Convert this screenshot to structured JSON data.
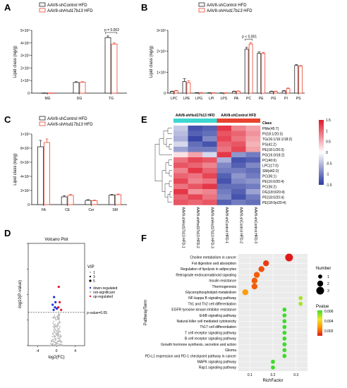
{
  "colors": {
    "control": "#222222",
    "knockdown": "#e8432e",
    "teal": "#3dd6d0",
    "heat_low": "#2b3aa0",
    "heat_mid": "#ffffff",
    "heat_high": "#e0182b",
    "volcano_down": "#1f2fd6",
    "volcano_up": "#e0182b",
    "volcano_ns": "#b5b5b5"
  },
  "legend": {
    "control": "AAV8-shControl HFD",
    "knockdown_prefix": "AAV8-sh",
    "knockdown_gene": "Hsd17b13",
    "knockdown_suffix": " HFD"
  },
  "chart_data": [
    {
      "panel": "A",
      "type": "bar",
      "ylabel": "Lipid class (ng/g)",
      "categories": [
        "MG",
        "DG",
        "TG"
      ],
      "yticks": [
        "0",
        "1×10³",
        "2×10³",
        "3×10³",
        "4×10³",
        "5×10³"
      ],
      "ylim": [
        0,
        5000
      ],
      "series": [
        {
          "name": "AAV8-shControl HFD",
          "values": [
            10,
            850,
            4420
          ],
          "errors": [
            5,
            60,
            130
          ]
        },
        {
          "name": "AAV8-shHsd17b13 HFD",
          "values": [
            10,
            860,
            3900
          ],
          "errors": [
            5,
            50,
            100
          ]
        }
      ],
      "annotation": {
        "text": "p = 0.002",
        "category": "TG"
      }
    },
    {
      "panel": "B",
      "type": "bar",
      "ylabel": "Lipid class (ng/g)",
      "categories": [
        "LPC",
        "LPE",
        "LPG",
        "LPI",
        "LPS",
        "PA",
        "PC",
        "PE",
        "PG",
        "PI",
        "PS"
      ],
      "yticks": [
        "0",
        "1×10³",
        "2×10³",
        "3×10³"
      ],
      "ylim": [
        0,
        3000
      ],
      "series": [
        {
          "name": "AAV8-shControl HFD",
          "values": [
            80,
            560,
            20,
            15,
            10,
            80,
            2100,
            1900,
            80,
            100,
            1320
          ],
          "errors": [
            15,
            130,
            5,
            5,
            5,
            15,
            90,
            70,
            15,
            25,
            40
          ]
        },
        {
          "name": "AAV8-shHsd17b13 HFD",
          "values": [
            110,
            500,
            20,
            15,
            10,
            90,
            2350,
            1900,
            80,
            210,
            1290
          ],
          "errors": [
            20,
            90,
            5,
            5,
            5,
            15,
            60,
            50,
            15,
            35,
            30
          ]
        }
      ],
      "annotation": {
        "text": "p < 0.001",
        "category": "PC"
      }
    },
    {
      "panel": "C",
      "type": "bar",
      "ylabel": "Lipid class (ng/g)",
      "categories": [
        "FA",
        "CE",
        "Cer",
        "SM"
      ],
      "yticks": [
        "0",
        "2×10²",
        "4×10²",
        "6×10²",
        "8×10²",
        "1×10³"
      ],
      "ylim": [
        0,
        1000
      ],
      "series": [
        {
          "name": "AAV8-shControl HFD",
          "values": [
            820,
            110,
            60,
            135
          ],
          "errors": [
            90,
            15,
            10,
            10
          ]
        },
        {
          "name": "AAV8-shHsd17b13 HFD",
          "values": [
            880,
            130,
            55,
            140
          ],
          "errors": [
            50,
            15,
            8,
            10
          ]
        }
      ]
    },
    {
      "panel": "D",
      "type": "scatter",
      "title": "Volcano Plot",
      "xlabel": "log2(FC)",
      "ylabel": "-log10(P-value)",
      "xticks": [
        "-4",
        "0",
        "4"
      ],
      "xlim": [
        -6,
        6
      ],
      "yticks": [
        "0",
        "1",
        "2",
        "3",
        "4"
      ],
      "ylim": [
        0,
        4
      ],
      "threshold_label": "p-value=0.05",
      "threshold": 1.3,
      "vip_title": "VIP",
      "vip_levels": [
        "1",
        "3",
        "5"
      ],
      "categories_legend": [
        "down-regulated",
        "not-significant",
        "up-regulated"
      ],
      "points_down": [
        [
          -0.8,
          1.6
        ],
        [
          -0.5,
          1.9
        ],
        [
          -0.3,
          1.5
        ],
        [
          0.1,
          1.45
        ],
        [
          -0.6,
          1.4
        ],
        [
          -0.2,
          1.7
        ]
      ],
      "points_up": [
        [
          0.5,
          2.3
        ],
        [
          0.7,
          1.7
        ],
        [
          0.4,
          1.5
        ],
        [
          1.0,
          1.4
        ]
      ],
      "ns_count": 160
    },
    {
      "panel": "E",
      "type": "heatmap",
      "group_labels": [
        "AAV8-shHsd17b13 HFD",
        "AAV8-shControl HFD"
      ],
      "rowtitle": "Class",
      "rows": [
        "PMe(45:7)",
        "PI(18:1/20:3)",
        "TG(16:1/16:1/18:2)",
        "PS(41:2)",
        "PE(18:1/20:3)",
        "PG(16:0/18:2)",
        "PC(40:6)",
        "LPC(17:0)",
        "SM(d42:2)",
        "PC(36:1)",
        "PE(16:0/20:4)",
        "PC(36:2)",
        "DG(18:0/20:4)",
        "PE(18:0/20:4)",
        "PE(18:0p/20:4)"
      ],
      "columns": [
        "AAV8-shHsd17b13 HFD-1",
        "AAV8-shHsd17b13 HFD-2",
        "AAV8-shHsd17b13 HFD-3",
        "AAV8-shControl HFD-1",
        "AAV8-shControl HFD-2",
        "AAV8-shControl HFD-3"
      ],
      "values": [
        [
          -0.4,
          -1.3,
          -1.2,
          1.3,
          0.8,
          0.6
        ],
        [
          -0.5,
          -1.2,
          -1.1,
          1.1,
          1.0,
          0.7
        ],
        [
          -0.6,
          -1.4,
          -0.9,
          1.2,
          0.9,
          0.6
        ],
        [
          -0.3,
          -1.1,
          -1.3,
          1.0,
          1.1,
          0.5
        ],
        [
          -0.7,
          -1.0,
          -1.0,
          0.9,
          1.2,
          0.6
        ],
        [
          0.2,
          0.6,
          -0.3,
          1.3,
          -0.8,
          -1.0
        ],
        [
          0.9,
          1.2,
          1.1,
          -0.6,
          -1.3,
          -1.2
        ],
        [
          1.1,
          1.0,
          0.8,
          -0.9,
          -1.2,
          -0.9
        ],
        [
          0.8,
          1.3,
          1.0,
          -1.0,
          -1.0,
          -1.1
        ],
        [
          1.0,
          0.9,
          1.2,
          -1.2,
          -0.8,
          -1.0
        ],
        [
          1.2,
          0.8,
          0.9,
          -1.3,
          -0.9,
          -0.8
        ],
        [
          0.9,
          1.1,
          1.3,
          -1.1,
          -1.1,
          -1.0
        ],
        [
          1.3,
          0.7,
          0.8,
          -1.0,
          -1.2,
          -0.7
        ],
        [
          1.0,
          1.2,
          0.9,
          -0.9,
          -1.3,
          -1.0
        ],
        [
          1.1,
          1.0,
          1.1,
          -1.2,
          -1.0,
          -1.1
        ]
      ],
      "scale_ticks": [
        "1.5",
        "1",
        "0.5",
        "0",
        "-0.5",
        "-1",
        "-1.5"
      ],
      "vlim": [
        -1.5,
        1.5
      ]
    },
    {
      "panel": "F",
      "type": "scatter",
      "xlabel": "RichFactor",
      "ylabel": "PathwayTerm",
      "xticks": [
        "0.1",
        "0.2",
        "0.3"
      ],
      "xlim": [
        0.05,
        0.35
      ],
      "terms": [
        "Choline metabolism in cancer",
        "Fat digestion and absorption",
        "Regulation of lipolysis in adipocytes",
        "Retrograde endocannabinoid signaling",
        "Insulin resistance",
        "Thermogenesis",
        "Glycerophospholipid metabolism",
        "NF-kappa B signaling pathway",
        "Th1 and Th2 cell differentiation",
        "EGFR tyrosine kinase inhibitor resistance",
        "ErbB signaling pathway",
        "Natural killer cell mediated cytotoxicity",
        "Th17 cell differentiation",
        "T cell receptor signaling pathway",
        "B cell receptor signaling pathway",
        "Growth hormone synthesis, secretion and action",
        "Glioma",
        "PD-L1 expression and PD-1 checkpoint pathway in cancer",
        "MAPK signaling pathway",
        "Rap1 signaling pathway"
      ],
      "rich": [
        0.27,
        0.17,
        0.15,
        0.13,
        0.12,
        0.12,
        0.08,
        0.32,
        0.32,
        0.25,
        0.25,
        0.25,
        0.25,
        0.25,
        0.25,
        0.25,
        0.25,
        0.25,
        0.2,
        0.2
      ],
      "number": [
        3,
        2,
        2,
        2,
        2,
        2,
        2,
        1,
        1,
        1,
        1,
        1,
        1,
        1,
        1,
        1,
        1,
        1,
        1,
        1
      ],
      "pvalue": [
        0.001,
        0.0015,
        0.0018,
        0.002,
        0.002,
        0.002,
        0.003,
        0.005,
        0.005,
        0.006,
        0.006,
        0.006,
        0.006,
        0.006,
        0.006,
        0.006,
        0.006,
        0.006,
        0.006,
        0.006
      ],
      "size_title": "Number",
      "size_levels": [
        "1",
        "2",
        "3"
      ],
      "color_title": "Pvalue",
      "color_ticks": [
        "0.006",
        "0.004",
        "0.002"
      ],
      "plim": [
        0.001,
        0.006
      ]
    }
  ]
}
